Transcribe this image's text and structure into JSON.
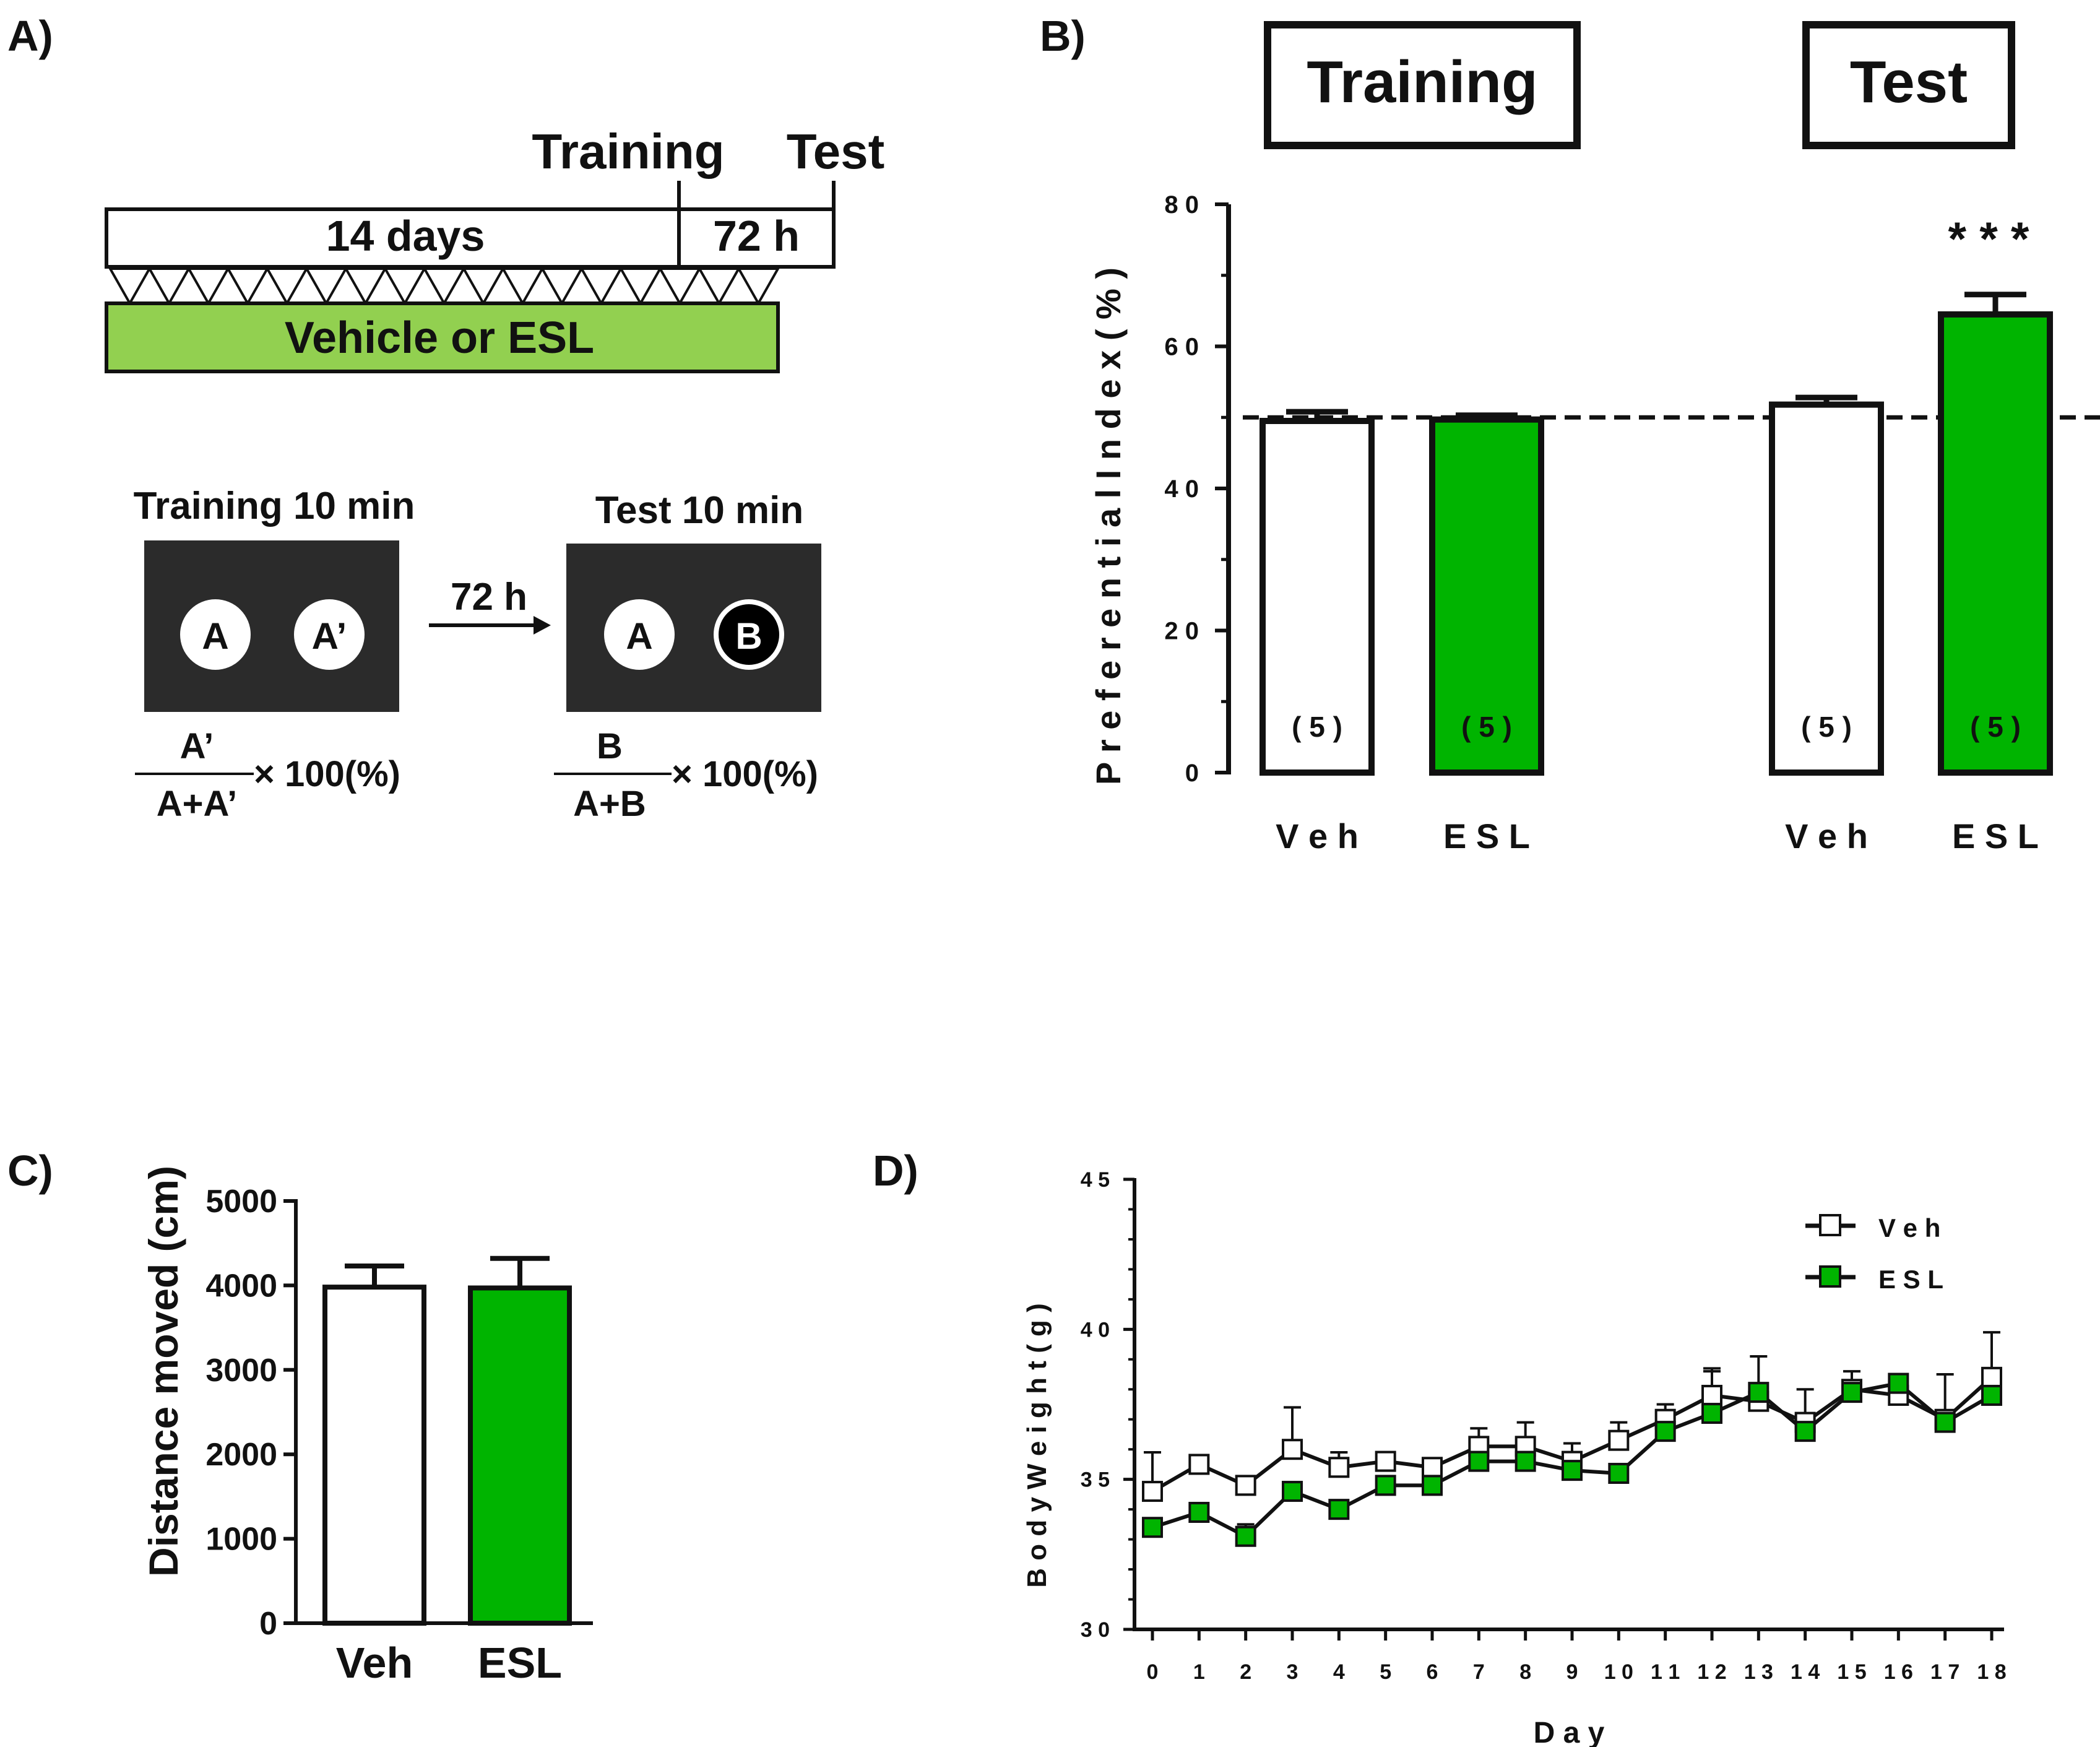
{
  "colors": {
    "esl_green": "#00b400",
    "vehicle_bar": "#92d050",
    "dark_panel": "#2b2b2b",
    "ink": "#111111"
  },
  "panels": {
    "a": "A)",
    "b": "B)",
    "c": "C)",
    "d": "D)"
  },
  "panel_a": {
    "timeline": {
      "training_label": "Training",
      "test_label": "Test",
      "days_label": "14 days",
      "gap_label": "72 h",
      "treatment_label": "Vehicle or ESL"
    },
    "arena": {
      "training_title": "Training 10 min",
      "test_title": "Test 10 min",
      "arrow_label": "72 h",
      "training_objects": [
        "A",
        "A’"
      ],
      "test_objects": [
        "A",
        "B"
      ],
      "training_formula": {
        "numerator": "A’",
        "denominator": "A+A’",
        "multiplier": "× 100(%)"
      },
      "test_formula": {
        "numerator": "B",
        "denominator": "A+B",
        "multiplier": "× 100(%)"
      }
    }
  },
  "chart_data": [
    {
      "id": "B",
      "type": "bar",
      "phase_headers": [
        "Training",
        "Test"
      ],
      "ylabel": "P r e f e r e n t i a l   I n d e x   ( % )",
      "ylim": [
        0,
        80
      ],
      "yticks": [
        "0",
        "2 0",
        "4 0",
        "6 0",
        "8 0"
      ],
      "reference_line": 50,
      "significance": "* * *",
      "bars": [
        {
          "group": "Training",
          "label": "V e h",
          "value": 49.5,
          "error": 1.3,
          "n": "( 5 )",
          "fill": "white"
        },
        {
          "group": "Training",
          "label": "E S L",
          "value": 49.7,
          "error": 0.6,
          "n": "( 5 )",
          "fill": "green"
        },
        {
          "group": "Test",
          "label": "V e h",
          "value": 51.8,
          "error": 1.0,
          "n": "( 5 )",
          "fill": "white"
        },
        {
          "group": "Test",
          "label": "E S L",
          "value": 64.5,
          "error": 2.8,
          "n": "( 5 )",
          "fill": "green"
        }
      ]
    },
    {
      "id": "C",
      "type": "bar",
      "ylabel": "Distance moved (cm)",
      "ylim": [
        0,
        5000
      ],
      "yticks": [
        "0",
        "1000",
        "2000",
        "3000",
        "4000",
        "5000"
      ],
      "bars": [
        {
          "label": "Veh",
          "value": 3980,
          "error": 250,
          "fill": "white"
        },
        {
          "label": "ESL",
          "value": 3970,
          "error": 350,
          "fill": "green"
        }
      ]
    },
    {
      "id": "D",
      "type": "line",
      "xlabel": "D a y",
      "ylabel": "B o d y   W e i g h t   ( g )",
      "xlim": [
        0,
        18
      ],
      "ylim": [
        30,
        45
      ],
      "xticks": [
        "0",
        "1",
        "2",
        "3",
        "4",
        "5",
        "6",
        "7",
        "8",
        "9",
        "1 0",
        "1 1",
        "1 2",
        "1 3",
        "1 4",
        "1 5",
        "1 6",
        "1 7",
        "1 8"
      ],
      "yticks": [
        "3 0",
        "3 5",
        "4 0",
        "4 5"
      ],
      "legend": "top-right",
      "series": [
        {
          "name": "V e h",
          "marker": "white-square",
          "values": [
            34.6,
            35.5,
            34.8,
            36.0,
            35.4,
            35.6,
            35.4,
            36.1,
            36.1,
            35.6,
            36.3,
            37.0,
            37.8,
            37.6,
            36.9,
            38.0,
            37.8,
            37.0,
            38.4
          ],
          "errors": [
            1.3,
            0.3,
            0.2,
            1.4,
            0.5,
            0.3,
            0.3,
            0.6,
            0.8,
            0.6,
            0.6,
            0.5,
            0.9,
            0.3,
            1.1,
            0.3,
            0.3,
            1.5,
            1.5
          ]
        },
        {
          "name": "E S L",
          "marker": "green-square",
          "values": [
            33.4,
            33.9,
            33.1,
            34.6,
            34.0,
            34.8,
            34.8,
            35.6,
            35.6,
            35.3,
            35.2,
            36.6,
            37.2,
            37.9,
            36.6,
            37.9,
            38.2,
            36.9,
            37.8
          ],
          "errors": [
            0.2,
            0.3,
            0.4,
            0.2,
            0.3,
            0.2,
            0.2,
            0.2,
            0.2,
            0.2,
            0.2,
            0.4,
            1.4,
            1.2,
            0.2,
            0.7,
            0.3,
            0.2,
            0.3
          ]
        }
      ]
    }
  ]
}
